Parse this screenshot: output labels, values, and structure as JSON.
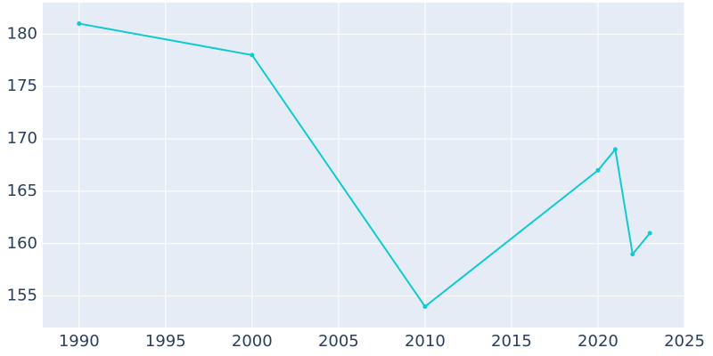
{
  "chart_data": {
    "type": "line",
    "x": [
      1990,
      2000,
      2010,
      2020,
      2021,
      2022,
      2023
    ],
    "values": [
      181,
      178,
      154,
      167,
      169,
      159,
      161
    ],
    "color": "#0fcbd0",
    "xlim": [
      1987.9,
      2025
    ],
    "xticks": [
      1990,
      1995,
      2000,
      2005,
      2010,
      2015,
      2020,
      2025
    ],
    "ylim": [
      152,
      183
    ],
    "yticks": [
      155,
      160,
      165,
      170,
      175,
      180
    ],
    "grid": true
  }
}
